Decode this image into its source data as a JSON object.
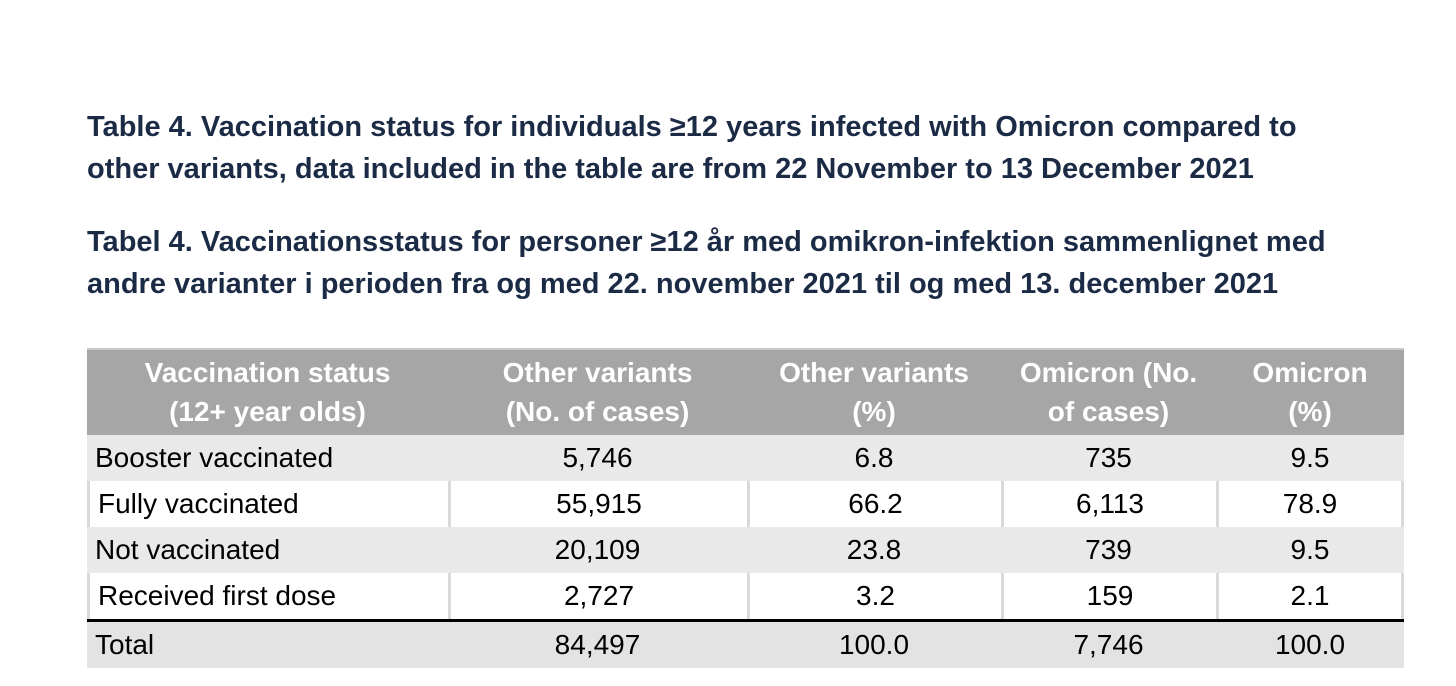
{
  "titles": {
    "english": {
      "line1": "Table 4. Vaccination status for individuals ≥12 years infected with Omicron compared to",
      "line2": "other variants, data included in the table are from 22 November to 13 December 2021"
    },
    "danish": {
      "line1": "Tabel 4. Vaccinationsstatus for personer ≥12 år med omikron-infektion sammenlignet med",
      "line2": "andre varianter i perioden fra og med 22. november 2021 til og med 13. december 2021"
    }
  },
  "table": {
    "headers": [
      {
        "line1": "Vaccination status",
        "line2": "(12+ year olds)"
      },
      {
        "line1": "Other variants",
        "line2": "(No. of cases)"
      },
      {
        "line1": "Other variants",
        "line2": "(%)"
      },
      {
        "line1": "Omicron (No.",
        "line2": "of cases)"
      },
      {
        "line1": "Omicron",
        "line2": "(%)"
      }
    ],
    "rows": [
      {
        "label": "Booster vaccinated",
        "values": [
          "5,746",
          "6.8",
          "735",
          "9.5"
        ]
      },
      {
        "label": "Fully vaccinated",
        "values": [
          "55,915",
          "66.2",
          "6,113",
          "78.9"
        ]
      },
      {
        "label": "Not vaccinated",
        "values": [
          "20,109",
          "23.8",
          "739",
          "9.5"
        ]
      },
      {
        "label": "Received first dose",
        "values": [
          "2,727",
          "3.2",
          "159",
          "2.1"
        ]
      }
    ],
    "total_row": {
      "label": "Total",
      "values": [
        "84,497",
        "100.0",
        "7,746",
        "100.0"
      ]
    }
  },
  "colors": {
    "title_text": "#1c2b45",
    "header_bg": "#a6a6a6",
    "header_text": "#ffffff",
    "shaded_row_bg": "#e9e9e9",
    "plain_row_bg": "#ffffff",
    "total_row_bg": "#e3e3e3",
    "cell_separator": "#d9d9d9",
    "total_rule": "#000000",
    "body_text": "#000000"
  },
  "chart_data": {
    "type": "table",
    "title": "Table 4. Vaccination status for individuals ≥12 years infected with Omicron compared to other variants, data included in the table are from 22 November to 13 December 2021",
    "columns": [
      "Vaccination status (12+ year olds)",
      "Other variants (No. of cases)",
      "Other variants (%)",
      "Omicron (No. of cases)",
      "Omicron (%)"
    ],
    "rows": [
      [
        "Booster vaccinated",
        5746,
        6.8,
        735,
        9.5
      ],
      [
        "Fully vaccinated",
        55915,
        66.2,
        6113,
        78.9
      ],
      [
        "Not vaccinated",
        20109,
        23.8,
        739,
        9.5
      ],
      [
        "Received first dose",
        2727,
        3.2,
        159,
        2.1
      ],
      [
        "Total",
        84497,
        100.0,
        7746,
        100.0
      ]
    ]
  }
}
